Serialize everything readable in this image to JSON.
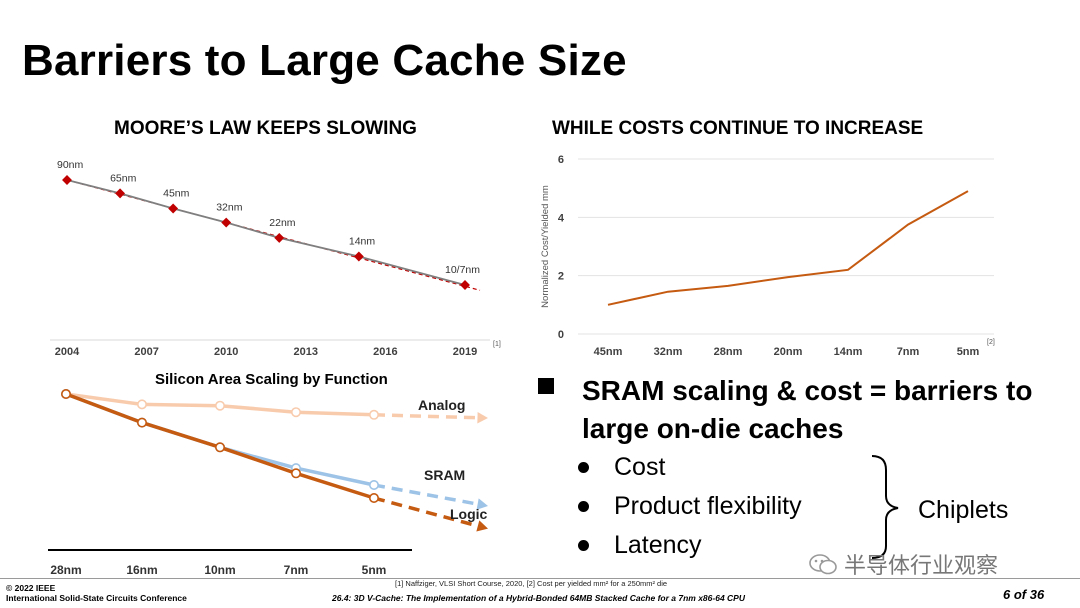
{
  "slide": {
    "title": "Barriers to Large Cache Size"
  },
  "chart_data": [
    {
      "type": "line",
      "title": "MOORE’S LAW KEEPS SLOWING",
      "x_ticks": [
        "2004",
        "2007",
        "2010",
        "2013",
        "2016",
        "2019"
      ],
      "xlim": [
        2004,
        2019
      ],
      "series": [
        {
          "x": [
            2004,
            2006,
            2008,
            2010,
            2012,
            2015,
            2019
          ],
          "y": [
            90,
            65,
            45,
            32,
            22,
            14,
            7
          ],
          "point_labels": [
            "90nm",
            "65nm",
            "45nm",
            "32nm",
            "22nm",
            "14nm",
            "10/7nm"
          ],
          "color": "#7f7f7f",
          "marker_color": "#c00000"
        }
      ],
      "trend_line": {
        "style": "dashed",
        "color": "#c00000"
      },
      "reference": "[1]"
    },
    {
      "type": "line",
      "title": "WHILE COSTS CONTINUE TO INCREASE",
      "categories": [
        "45nm",
        "32nm",
        "28nm",
        "20nm",
        "14nm",
        "7nm",
        "5nm"
      ],
      "values": [
        1.0,
        1.45,
        1.65,
        1.95,
        2.2,
        3.75,
        4.9
      ],
      "ylabel": "Normalized Cost/Yielded mm",
      "ylim": [
        0,
        6
      ],
      "y_ticks": [
        0,
        2,
        4,
        6
      ],
      "color": "#c55a11",
      "reference": "[2]"
    },
    {
      "type": "line",
      "title": "Silicon Area Scaling by Function",
      "categories": [
        "28nm",
        "16nm",
        "10nm",
        "7nm",
        "5nm"
      ],
      "series": [
        {
          "name": "Analog",
          "values": [
            1.0,
            0.92,
            0.91,
            0.86,
            0.84
          ],
          "color": "#f8cbad"
        },
        {
          "name": "SRAM",
          "values": [
            1.0,
            0.78,
            0.59,
            0.43,
            0.3
          ],
          "color": "#9dc3e6"
        },
        {
          "name": "Logic",
          "values": [
            1.0,
            0.78,
            0.59,
            0.39,
            0.2
          ],
          "color": "#c55a11"
        }
      ]
    }
  ],
  "bullets": {
    "main": "SRAM scaling & cost = barriers to large on-die caches",
    "items": [
      "Cost",
      "Product flexibility",
      "Latency"
    ],
    "brace_label": "Chiplets"
  },
  "footer": {
    "copyright": "© 2022 IEEE",
    "conference": "International Solid-State Circuits Conference",
    "references": "[1]  Naffziger, VLSI Short Course, 2020, [2] Cost per yielded mm² for a 250mm² die",
    "paper_title": "26.4:  3D V-Cache: The Implementation of a Hybrid-Bonded 64MB Stacked Cache for a 7nm x86-64 CPU",
    "page": "6 of 36"
  },
  "watermark": {
    "text": "半导体行业观察"
  }
}
